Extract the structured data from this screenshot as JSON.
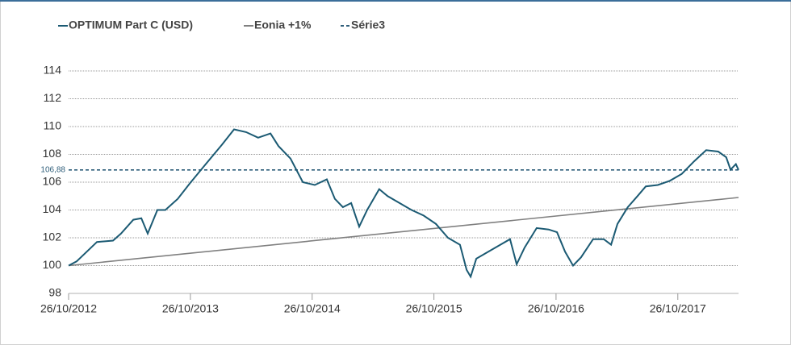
{
  "chart_data": {
    "type": "line",
    "legend": "top",
    "grid": true,
    "xlim": [
      "2012-10-26",
      "2018-04-26"
    ],
    "xticks": [
      {
        "value": "2012-10-26",
        "label": "26/10/2012"
      },
      {
        "value": "2013-10-26",
        "label": "26/10/2013"
      },
      {
        "value": "2014-10-26",
        "label": "26/10/2014"
      },
      {
        "value": "2015-10-26",
        "label": "26/10/2015"
      },
      {
        "value": "2016-10-26",
        "label": "26/10/2016"
      },
      {
        "value": "2017-10-26",
        "label": "26/10/2017"
      }
    ],
    "ylim": [
      98,
      114
    ],
    "yticks": [
      98,
      100,
      102,
      104,
      106,
      108,
      110,
      112,
      114
    ],
    "series": [
      {
        "name": "OPTIMUM Part C (USD)",
        "color": "#1b5a73",
        "dash": false,
        "x": [
          "2012-10-26",
          "2012-11-19",
          "2013-01-19",
          "2013-03-08",
          "2013-04-01",
          "2013-05-08",
          "2013-06-01",
          "2013-06-20",
          "2013-07-19",
          "2013-08-12",
          "2013-09-18",
          "2013-10-24",
          "2013-12-11",
          "2014-01-29",
          "2014-03-06",
          "2014-04-11",
          "2014-05-17",
          "2014-06-23",
          "2014-07-17",
          "2014-08-22",
          "2014-09-28",
          "2014-11-03",
          "2014-12-09",
          "2015-01-02",
          "2015-01-26",
          "2015-02-20",
          "2015-03-16",
          "2015-04-09",
          "2015-05-15",
          "2015-06-09",
          "2015-07-15",
          "2015-08-20",
          "2015-09-25",
          "2015-11-01",
          "2015-12-07",
          "2016-01-12",
          "2016-02-01",
          "2016-02-13",
          "2016-03-01",
          "2016-04-06",
          "2016-05-12",
          "2016-06-10",
          "2016-06-30",
          "2016-07-24",
          "2016-08-29",
          "2016-10-04",
          "2016-10-29",
          "2016-11-22",
          "2016-12-16",
          "2017-01-09",
          "2017-02-14",
          "2017-03-18",
          "2017-04-09",
          "2017-04-28",
          "2017-05-29",
          "2017-06-27",
          "2017-07-22",
          "2017-08-27",
          "2017-10-02",
          "2017-11-07",
          "2017-12-14",
          "2018-01-19",
          "2018-02-24",
          "2018-03-20",
          "2018-04-02",
          "2018-04-18",
          "2018-04-26"
        ],
        "values": [
          100,
          100.3,
          101.7,
          101.8,
          102.3,
          103.3,
          103.4,
          102.3,
          104.0,
          104.0,
          104.8,
          105.9,
          107.3,
          108.7,
          109.8,
          109.6,
          109.2,
          109.5,
          108.6,
          107.7,
          106.0,
          105.8,
          106.2,
          104.8,
          104.2,
          104.5,
          102.8,
          104.0,
          105.5,
          105.0,
          104.5,
          104.0,
          103.6,
          103.0,
          102.0,
          101.5,
          99.7,
          99.2,
          100.5,
          101.0,
          101.5,
          101.9,
          100.1,
          101.3,
          102.7,
          102.6,
          102.4,
          101.0,
          100.0,
          100.6,
          101.9,
          101.9,
          101.5,
          103.0,
          104.2,
          105.0,
          105.7,
          105.8,
          106.1,
          106.6,
          107.5,
          108.3,
          108.2,
          107.8,
          106.9,
          107.3,
          106.88
        ]
      },
      {
        "name": "Eonia +1%",
        "color": "#808080",
        "dash": false,
        "x": [
          "2012-10-26",
          "2018-04-26"
        ],
        "values": [
          100,
          104.9
        ]
      },
      {
        "name": "Série3",
        "color": "#2f5e7a",
        "dash": true,
        "x": [
          "2012-10-26",
          "2018-04-26"
        ],
        "values": [
          106.88,
          106.88
        ],
        "value_labels": [
          "106,88",
          null
        ]
      }
    ]
  }
}
